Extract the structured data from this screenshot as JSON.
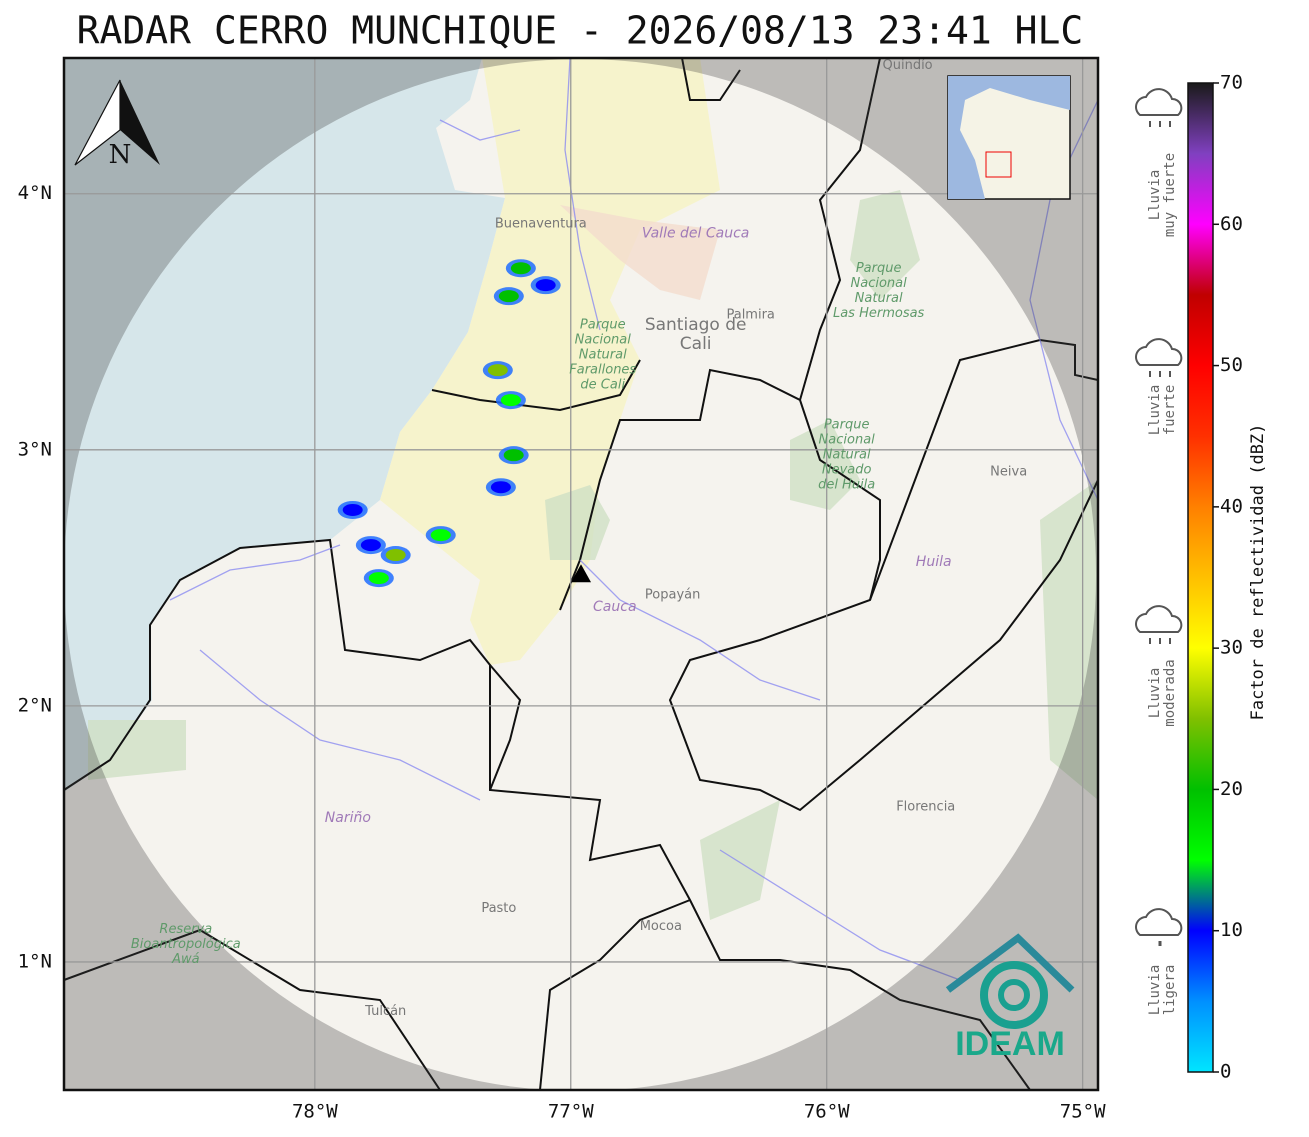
{
  "title": "RADAR CERRO MUNCHIQUE - 2026/08/13 23:41 HLC",
  "map": {
    "lon_range": [
      -78.98,
      -74.94
    ],
    "lat_range": [
      0.5,
      4.53
    ],
    "lon_ticks": [
      {
        "value": -78,
        "label": "78°W"
      },
      {
        "value": -77,
        "label": "77°W"
      },
      {
        "value": -76,
        "label": "76°W"
      },
      {
        "value": -75,
        "label": "75°W"
      }
    ],
    "lat_ticks": [
      {
        "value": 1,
        "label": "1°N"
      },
      {
        "value": 2,
        "label": "2°N"
      },
      {
        "value": 3,
        "label": "3°N"
      },
      {
        "value": 4,
        "label": "4°N"
      }
    ],
    "grid": true,
    "north_label": "N",
    "radar_site": {
      "lon": -76.96,
      "lat": 2.51
    },
    "places": [
      {
        "lines": [
          "Quindío"
        ],
        "lon": -75.684,
        "lat": 4.5,
        "kind": "city"
      },
      {
        "lines": [
          "Buenaventura"
        ],
        "lon": -77.117,
        "lat": 3.881,
        "kind": "city"
      },
      {
        "lines": [
          "Valle del Cauca"
        ],
        "lon": -76.512,
        "lat": 3.845,
        "kind": "department"
      },
      {
        "lines": [
          "Palmira"
        ],
        "lon": -76.297,
        "lat": 3.526,
        "kind": "city"
      },
      {
        "lines": [
          "Santiago de",
          "Cali"
        ],
        "lon": -76.512,
        "lat": 3.45,
        "kind": "bigcity"
      },
      {
        "lines": [
          "Parque",
          "Nacional",
          "Natural",
          "Farallones",
          "de Cali"
        ],
        "lon": -76.875,
        "lat": 3.37,
        "kind": "park"
      },
      {
        "lines": [
          "Parque",
          "Nacional",
          "Natural",
          "Las Hermosas"
        ],
        "lon": -75.797,
        "lat": 3.62,
        "kind": "park"
      },
      {
        "lines": [
          "Parque",
          "Nacional",
          "Natural",
          "Nevado",
          "del Huila"
        ],
        "lon": -75.922,
        "lat": 2.98,
        "kind": "park"
      },
      {
        "lines": [
          "Neiva"
        ],
        "lon": -75.289,
        "lat": 2.913,
        "kind": "city"
      },
      {
        "lines": [
          "Huila"
        ],
        "lon": -75.582,
        "lat": 2.562,
        "kind": "department"
      },
      {
        "lines": [
          "Popayán"
        ],
        "lon": -76.602,
        "lat": 2.433,
        "kind": "city"
      },
      {
        "lines": [
          "Cauca"
        ],
        "lon": -76.828,
        "lat": 2.386,
        "kind": "department"
      },
      {
        "lines": [
          "Nariño"
        ],
        "lon": -77.871,
        "lat": 1.563,
        "kind": "department"
      },
      {
        "lines": [
          "Florencia"
        ],
        "lon": -75.613,
        "lat": 1.606,
        "kind": "city"
      },
      {
        "lines": [
          "Pasto"
        ],
        "lon": -77.281,
        "lat": 1.208,
        "kind": "city"
      },
      {
        "lines": [
          "Mocoa"
        ],
        "lon": -76.648,
        "lat": 1.138,
        "kind": "city"
      },
      {
        "lines": [
          "Tulcán"
        ],
        "lon": -77.723,
        "lat": 0.806,
        "kind": "city"
      },
      {
        "lines": [
          "Reserva",
          "Bioantropológica",
          "Awá"
        ],
        "lon": -78.504,
        "lat": 1.068,
        "kind": "park"
      }
    ],
    "echoes": [
      {
        "lon": -77.195,
        "lat": 3.709,
        "dbz": 20
      },
      {
        "lon": -77.098,
        "lat": 3.643,
        "dbz": 12
      },
      {
        "lon": -77.242,
        "lat": 3.6,
        "dbz": 22
      },
      {
        "lon": -77.285,
        "lat": 3.311,
        "dbz": 25
      },
      {
        "lon": -77.234,
        "lat": 3.194,
        "dbz": 15
      },
      {
        "lon": -77.223,
        "lat": 2.979,
        "dbz": 18
      },
      {
        "lon": -77.273,
        "lat": 2.854,
        "dbz": 10
      },
      {
        "lon": -77.852,
        "lat": 2.765,
        "dbz": 8
      },
      {
        "lon": -77.781,
        "lat": 2.628,
        "dbz": 12
      },
      {
        "lon": -77.684,
        "lat": 2.589,
        "dbz": 26
      },
      {
        "lon": -77.508,
        "lat": 2.667,
        "dbz": 14
      },
      {
        "lon": -77.75,
        "lat": 2.499,
        "dbz": 16
      }
    ]
  },
  "colorbar": {
    "label": "Factor de reflectividad (dBZ)",
    "range": [
      0,
      70
    ],
    "ticks": [
      0,
      10,
      20,
      30,
      40,
      50,
      60,
      70
    ],
    "colors": [
      "#00e5ff",
      "#0090ff",
      "#0000ff",
      "#00ff00",
      "#00c000",
      "#80c000",
      "#ffff00",
      "#ffc000",
      "#ff8000",
      "#ff3000",
      "#ff0000",
      "#c00000",
      "#ff00ff",
      "#8040c0",
      "#1a1a1a"
    ]
  },
  "legend": [
    {
      "lines": [
        "Lluvia",
        "muy fuerte"
      ]
    },
    {
      "lines": [
        "Lluvia",
        "fuerte"
      ]
    },
    {
      "lines": [
        "Lluvia",
        "moderada"
      ]
    },
    {
      "lines": [
        "Lluvia",
        "ligera"
      ]
    }
  ],
  "logo": "IDEAM"
}
